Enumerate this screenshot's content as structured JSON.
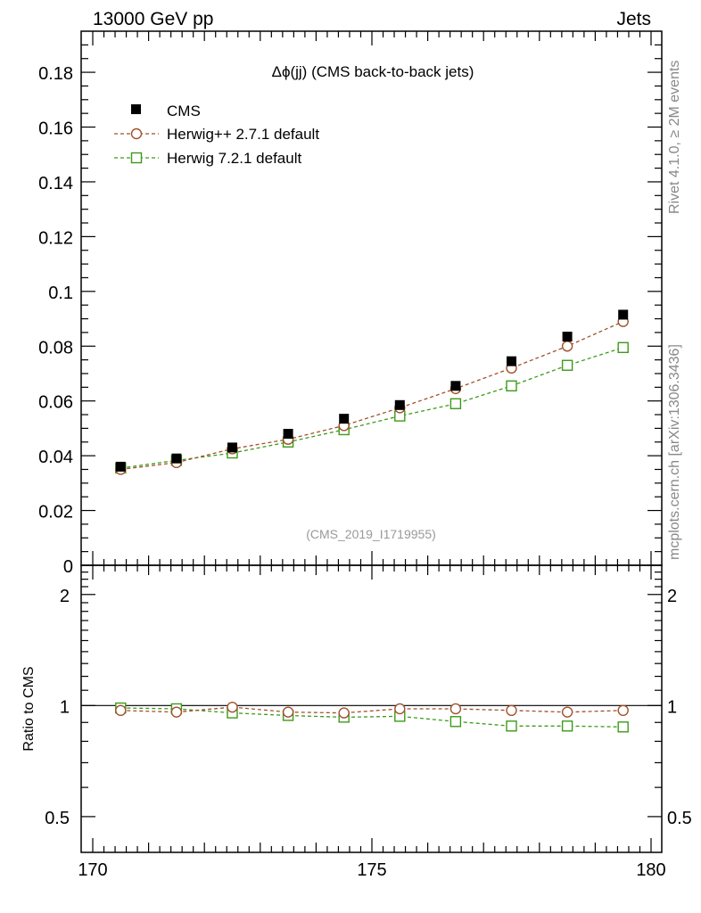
{
  "header": {
    "left": "13000 GeV pp",
    "right": "Jets"
  },
  "side_labels": {
    "top": "Rivet 4.1.0, ≥ 2M events",
    "bottom": "mcplots.cern.ch [arXiv:1306.3436]"
  },
  "watermark": "(CMS_2019_I1719955)",
  "title": "Δϕ(jj) (CMS back-to-back jets)",
  "legend": [
    {
      "name": "CMS",
      "marker": "filled-square",
      "color": "#000000"
    },
    {
      "name": "Herwig++ 2.7.1 default",
      "marker": "open-circle",
      "color": "#a0522d"
    },
    {
      "name": "Herwig 7.2.1 default",
      "marker": "open-square",
      "color": "#3c9a1a"
    }
  ],
  "ratio_ylabel": "Ratio to CMS",
  "chart_data": {
    "type": "scatter",
    "title": "Δϕ(jj) (CMS back-to-back jets)",
    "xlim": [
      170,
      180
    ],
    "x_ticks": [
      "170",
      "175",
      "180"
    ],
    "ylim": [
      0,
      0.195
    ],
    "y_ticks": [
      "0",
      "0.02",
      "0.04",
      "0.06",
      "0.08",
      "0.1",
      "0.12",
      "0.14",
      "0.16",
      "0.18"
    ],
    "x": [
      170.5,
      171.5,
      172.5,
      173.5,
      174.5,
      175.5,
      176.5,
      177.5,
      178.5,
      179.5
    ],
    "series": [
      {
        "name": "CMS",
        "values": [
          0.036,
          0.039,
          0.043,
          0.048,
          0.0535,
          0.0585,
          0.0655,
          0.0745,
          0.0835,
          0.0915
        ]
      },
      {
        "name": "Herwig++ 2.7.1 default",
        "values": [
          0.035,
          0.0375,
          0.0425,
          0.046,
          0.051,
          0.0575,
          0.0645,
          0.072,
          0.08,
          0.089
        ]
      },
      {
        "name": "Herwig 7.2.1 default",
        "values": [
          0.0355,
          0.0383,
          0.041,
          0.045,
          0.0495,
          0.0545,
          0.059,
          0.0655,
          0.073,
          0.0795
        ]
      }
    ],
    "ratio": {
      "ylabel": "Ratio to CMS",
      "ylim": [
        0.4,
        2.4
      ],
      "y_ticks": [
        "0.5",
        "1",
        "2"
      ],
      "reference": 1,
      "series": [
        {
          "name": "Herwig++ 2.7.1 default",
          "values": [
            0.97,
            0.96,
            0.99,
            0.96,
            0.955,
            0.98,
            0.98,
            0.97,
            0.96,
            0.97
          ]
        },
        {
          "name": "Herwig 7.2.1 default",
          "values": [
            0.985,
            0.98,
            0.955,
            0.94,
            0.93,
            0.935,
            0.905,
            0.88,
            0.88,
            0.875
          ]
        }
      ]
    }
  }
}
